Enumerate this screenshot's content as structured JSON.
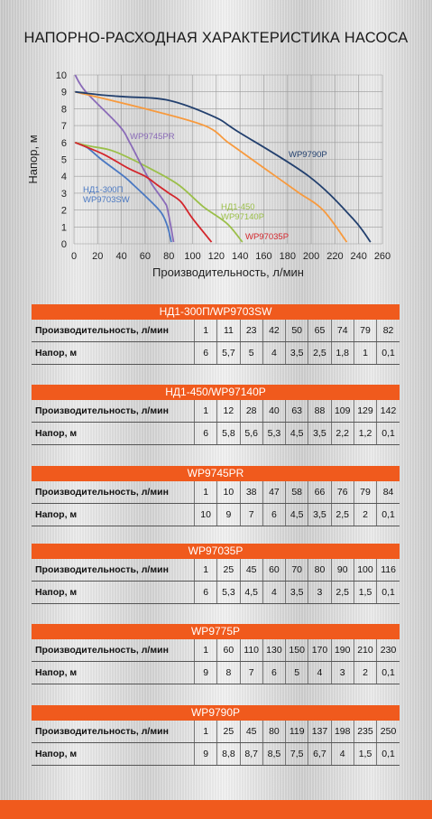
{
  "title": "НАПОРНО-РАСХОДНАЯ ХАРАКТЕРИСТИКА НАСОСА",
  "chart_data": {
    "type": "line",
    "xlabel": "Производительность, л/мин",
    "ylabel": "Напор, м",
    "xlim": [
      0,
      260
    ],
    "ylim": [
      0,
      10
    ],
    "xticks": [
      0,
      20,
      40,
      60,
      80,
      100,
      120,
      140,
      160,
      180,
      200,
      220,
      240,
      260
    ],
    "yticks": [
      0,
      1,
      2,
      3,
      4,
      5,
      6,
      7,
      8,
      9,
      10
    ],
    "grid": true,
    "series": [
      {
        "name": "НД1-300П\nWP9703SW",
        "label_lines": [
          "НД1-300П",
          "WP9703SW"
        ],
        "color": "#4a78c2",
        "x": [
          1,
          11,
          23,
          42,
          50,
          65,
          74,
          79,
          82
        ],
        "y": [
          6,
          5.7,
          5,
          4,
          3.5,
          2.5,
          1.8,
          1,
          0.1
        ]
      },
      {
        "name": "НД1-450\nWP97140P",
        "label_lines": [
          "НД1-450",
          "WP97140P"
        ],
        "color": "#9bbf4a",
        "x": [
          1,
          12,
          28,
          40,
          63,
          88,
          109,
          129,
          142
        ],
        "y": [
          6,
          5.8,
          5.6,
          5.3,
          4.5,
          3.5,
          2.2,
          1.2,
          0.1
        ]
      },
      {
        "name": "WP9745PR",
        "label_lines": [
          "WP9745PR"
        ],
        "color": "#8a6bb8",
        "x": [
          1,
          10,
          38,
          47,
          58,
          66,
          76,
          79,
          84
        ],
        "y": [
          10,
          9,
          7,
          6,
          4.5,
          3.5,
          2.5,
          2,
          0.1
        ]
      },
      {
        "name": "WP97035P",
        "label_lines": [
          "WP97035P"
        ],
        "color": "#d3262c",
        "x": [
          1,
          25,
          45,
          60,
          70,
          80,
          90,
          100,
          116
        ],
        "y": [
          6,
          5.3,
          4.5,
          4,
          3.5,
          3,
          2.5,
          1.5,
          0.1
        ]
      },
      {
        "name": "",
        "label_lines": [],
        "color": "#f79a3e",
        "x": [
          1,
          60,
          110,
          130,
          150,
          170,
          190,
          210,
          230
        ],
        "y": [
          9,
          8,
          7,
          6,
          5,
          4,
          3,
          2,
          0.1
        ]
      },
      {
        "name": "WP9790P",
        "label_lines": [
          "WP9790P"
        ],
        "color": "#23406e",
        "x": [
          1,
          25,
          45,
          80,
          119,
          137,
          198,
          235,
          250
        ],
        "y": [
          9,
          8.8,
          8.7,
          8.5,
          7.5,
          6.7,
          4,
          1.5,
          0.1
        ]
      }
    ]
  },
  "tables": [
    {
      "title": "НД1-300П/WP9703SW",
      "row1_label": "Производительность, л/мин",
      "row2_label": "Напор, м",
      "flow": [
        "1",
        "11",
        "23",
        "42",
        "50",
        "65",
        "74",
        "79",
        "82"
      ],
      "head": [
        "6",
        "5,7",
        "5",
        "4",
        "3,5",
        "2,5",
        "1,8",
        "1",
        "0,1"
      ]
    },
    {
      "title": "НД1-450/WP97140P",
      "row1_label": "Производительность, л/мин",
      "row2_label": "Напор, м",
      "flow": [
        "1",
        "12",
        "28",
        "40",
        "63",
        "88",
        "109",
        "129",
        "142"
      ],
      "head": [
        "6",
        "5,8",
        "5,6",
        "5,3",
        "4,5",
        "3,5",
        "2,2",
        "1,2",
        "0,1"
      ]
    },
    {
      "title": "WP9745PR",
      "row1_label": "Производительность, л/мин",
      "row2_label": "Напор, м",
      "flow": [
        "1",
        "10",
        "38",
        "47",
        "58",
        "66",
        "76",
        "79",
        "84"
      ],
      "head": [
        "10",
        "9",
        "7",
        "6",
        "4,5",
        "3,5",
        "2,5",
        "2",
        "0,1"
      ]
    },
    {
      "title": "WP97035P",
      "row1_label": "Производительность, л/мин",
      "row2_label": "Напор, м",
      "flow": [
        "1",
        "25",
        "45",
        "60",
        "70",
        "80",
        "90",
        "100",
        "116"
      ],
      "head": [
        "6",
        "5,3",
        "4,5",
        "4",
        "3,5",
        "3",
        "2,5",
        "1,5",
        "0,1"
      ]
    },
    {
      "title": "WP9775P",
      "row1_label": "Производительность, л/мин",
      "row2_label": "Напор, м",
      "flow": [
        "1",
        "60",
        "110",
        "130",
        "150",
        "170",
        "190",
        "210",
        "230"
      ],
      "head": [
        "9",
        "8",
        "7",
        "6",
        "5",
        "4",
        "3",
        "2",
        "0,1"
      ]
    },
    {
      "title": "WP9790P",
      "row1_label": "Производительность, л/мин",
      "row2_label": "Напор, м",
      "flow": [
        "1",
        "25",
        "45",
        "80",
        "119",
        "137",
        "198",
        "235",
        "250"
      ],
      "head": [
        "9",
        "8,8",
        "8,7",
        "8,5",
        "7,5",
        "6,7",
        "4",
        "1,5",
        "0,1"
      ]
    }
  ]
}
